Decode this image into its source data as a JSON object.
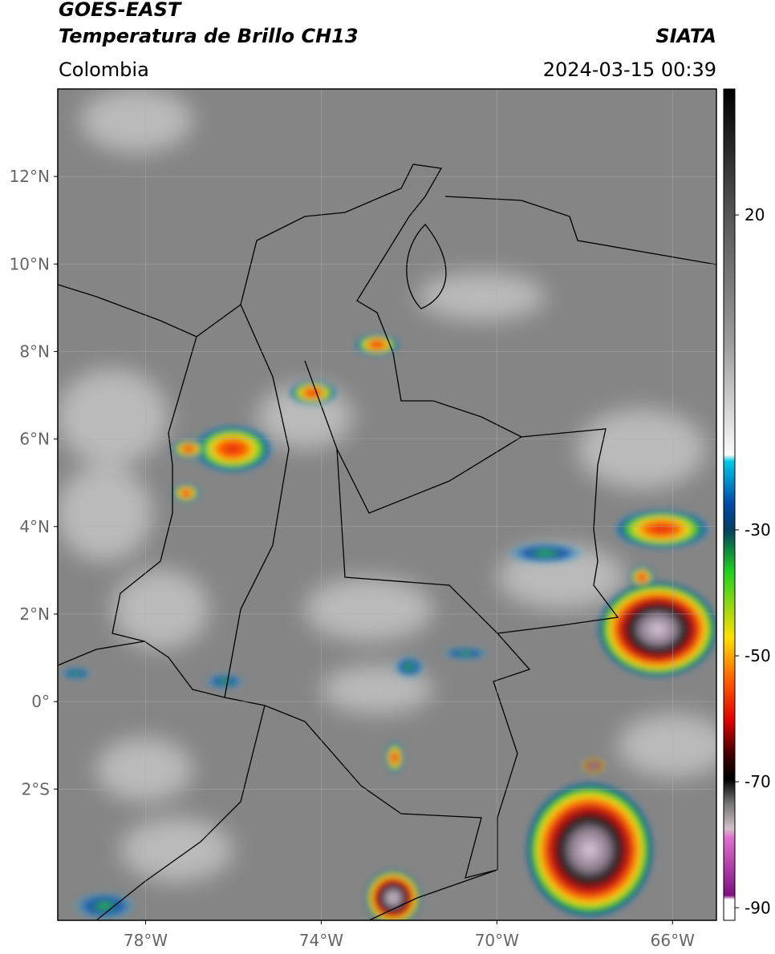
{
  "header": {
    "satellite": "GOES-EAST",
    "product": "Temperatura de Brillo CH13",
    "region": "Colombia",
    "source": "SIATA",
    "datetime": "2024-03-15 00:39"
  },
  "map": {
    "lon_lim": [
      -80,
      -65
    ],
    "lat_lim": [
      -5,
      14
    ],
    "lon_ticks": [
      {
        "value": -78,
        "label": "78°W"
      },
      {
        "value": -74,
        "label": "74°W"
      },
      {
        "value": -70,
        "label": "70°W"
      },
      {
        "value": -66,
        "label": "66°W"
      }
    ],
    "lat_ticks": [
      {
        "value": 12,
        "label": "12°N"
      },
      {
        "value": 10,
        "label": "10°N"
      },
      {
        "value": 8,
        "label": "8°N"
      },
      {
        "value": 6,
        "label": "6°N"
      },
      {
        "value": 4,
        "label": "4°N"
      },
      {
        "value": 2,
        "label": "2°N"
      },
      {
        "value": 0,
        "label": "0°"
      },
      {
        "value": -2,
        "label": "2°S"
      }
    ],
    "grid": true
  },
  "colorbar": {
    "lim": [
      -92,
      40
    ],
    "ticks": [
      20,
      -30,
      -50,
      -70,
      -90
    ]
  }
}
